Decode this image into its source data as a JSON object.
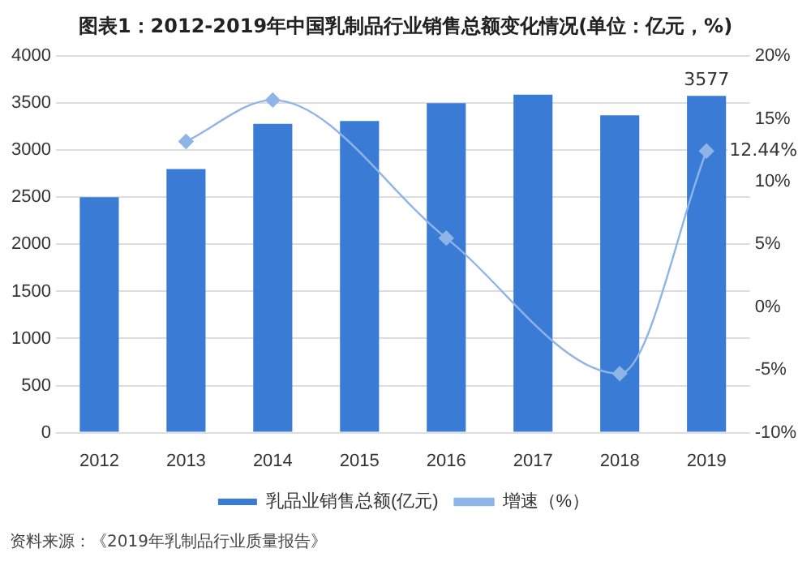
{
  "chart_data": {
    "type": "bar",
    "title": "图表1：2012-2019年中国乳制品行业销售总额变化情况(单位：亿元，%)",
    "categories": [
      "2012",
      "2013",
      "2014",
      "2015",
      "2016",
      "2017",
      "2018",
      "2019"
    ],
    "series": [
      {
        "name": "乳品业销售总额(亿元)",
        "color": "#3a7bd5",
        "values": [
          2500,
          2800,
          3280,
          3310,
          3500,
          3590,
          3370,
          3577
        ],
        "value_labels": [
          null,
          null,
          null,
          null,
          null,
          null,
          null,
          "3577"
        ]
      },
      {
        "name": "增速（%）",
        "type": "line",
        "axis": "y2",
        "color": "#8fb4e8",
        "values": [
          null,
          13.2,
          16.5,
          null,
          5.5,
          null,
          -5.3,
          12.44
        ],
        "value_labels": [
          null,
          null,
          null,
          null,
          null,
          null,
          null,
          "12.44%"
        ]
      }
    ],
    "ylim": [
      0,
      4000
    ],
    "yticks": [
      0,
      500,
      1000,
      1500,
      2000,
      2500,
      3000,
      3500,
      4000
    ],
    "y2lim": [
      -10,
      20
    ],
    "y2ticks": [
      {
        "value": -10,
        "label": "-10%"
      },
      {
        "value": -5,
        "label": "-5%"
      },
      {
        "value": 0,
        "label": "0%"
      },
      {
        "value": 5,
        "label": "5%"
      },
      {
        "value": 10,
        "label": "10%"
      },
      {
        "value": 15,
        "label": "15%"
      },
      {
        "value": 20,
        "label": "20%"
      }
    ],
    "grid": "y",
    "legend": "bottom",
    "marker": "diamond",
    "annotations": [
      "资料来源：《2019年乳制品行业质量报告》"
    ]
  }
}
